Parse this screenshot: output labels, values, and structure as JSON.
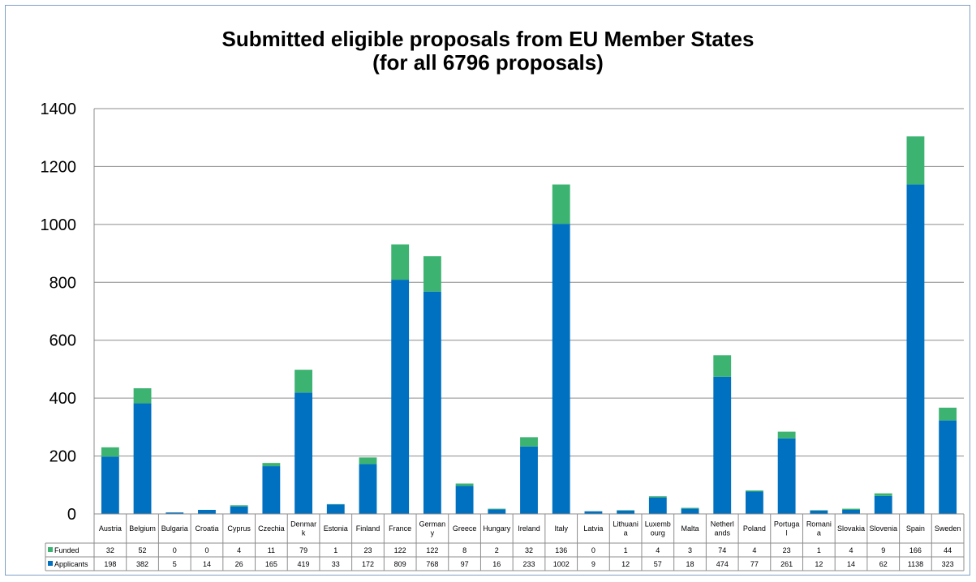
{
  "chart_data": {
    "type": "bar",
    "stacked": true,
    "title_line1": "Submitted eligible proposals from EU Member States",
    "title_line2": "(for all 6796 proposals)",
    "xlabel": "",
    "ylabel": "",
    "ylim": [
      0,
      1400
    ],
    "yticks": [
      0,
      200,
      400,
      600,
      800,
      1000,
      1200,
      1400
    ],
    "grid": true,
    "legend": "data-table",
    "categories": [
      [
        "Austria"
      ],
      [
        "Belgium"
      ],
      [
        "Bulgaria"
      ],
      [
        "Croatia"
      ],
      [
        "Cyprus"
      ],
      [
        "Czechia"
      ],
      [
        "Denmar",
        "k"
      ],
      [
        "Estonia"
      ],
      [
        "Finland"
      ],
      [
        "France"
      ],
      [
        "German",
        "y"
      ],
      [
        "Greece"
      ],
      [
        "Hungary"
      ],
      [
        "Ireland"
      ],
      [
        "Italy"
      ],
      [
        "Latvia"
      ],
      [
        "Lithuani",
        "a"
      ],
      [
        "Luxemb",
        "ourg"
      ],
      [
        "Malta"
      ],
      [
        "Netherl",
        "ands"
      ],
      [
        "Poland"
      ],
      [
        "Portuga",
        "l"
      ],
      [
        "Romani",
        "a"
      ],
      [
        "Slovakia"
      ],
      [
        "Slovenia"
      ],
      [
        "Spain"
      ],
      [
        "Sweden"
      ]
    ],
    "series": [
      {
        "name": "Applicants",
        "color": "#0070c0",
        "values": [
          198,
          382,
          5,
          14,
          26,
          165,
          419,
          33,
          172,
          809,
          768,
          97,
          16,
          233,
          1002,
          9,
          12,
          57,
          18,
          474,
          77,
          261,
          12,
          14,
          62,
          1138,
          323
        ]
      },
      {
        "name": "Funded",
        "color": "#3cb371",
        "values": [
          32,
          52,
          0,
          0,
          4,
          11,
          79,
          1,
          23,
          122,
          122,
          8,
          2,
          32,
          136,
          0,
          1,
          4,
          3,
          74,
          4,
          23,
          1,
          4,
          9,
          166,
          44
        ]
      }
    ],
    "table_row_order": [
      "Funded",
      "Applicants"
    ]
  }
}
